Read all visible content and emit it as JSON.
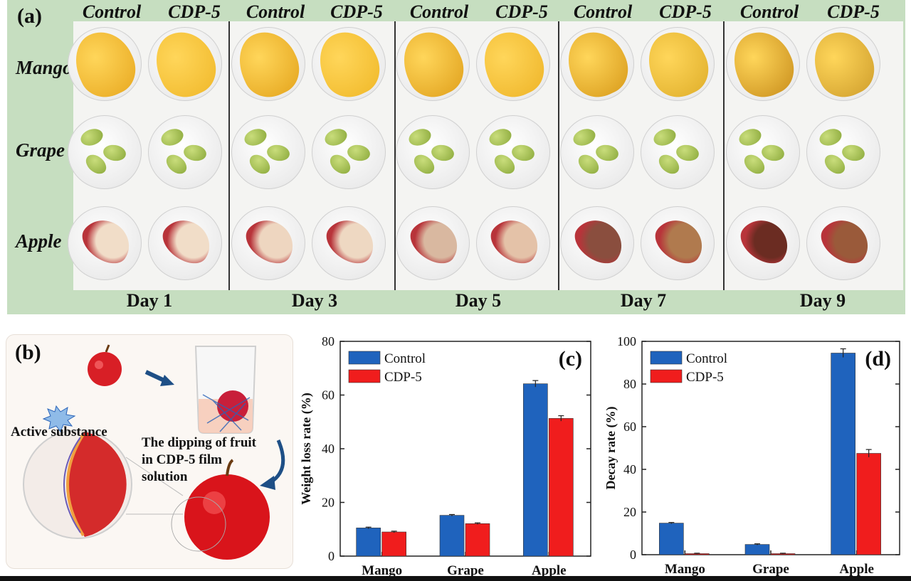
{
  "panel_a": {
    "label": "(a)",
    "column_headers": [
      "Control",
      "CDP-5",
      "Control",
      "CDP-5",
      "Control",
      "CDP-5",
      "Control",
      "CDP-5",
      "Control",
      "CDP-5"
    ],
    "rows": [
      "Mango",
      "Grape",
      "Apple"
    ],
    "days": [
      "Day 1",
      "Day 3",
      "Day 5",
      "Day 7",
      "Day 9"
    ]
  },
  "panel_b": {
    "label": "(b)",
    "active_substance": "Active substance",
    "dipping_text": [
      "The dipping of fruit",
      "in CDP-5 film",
      "solution"
    ]
  },
  "chart_data": [
    {
      "panel": "(c)",
      "type": "bar",
      "categories": [
        "Mango",
        "Grape",
        "Apple"
      ],
      "series": [
        {
          "name": "Control",
          "color": "#1f63bd",
          "values": [
            10.5,
            15.2,
            64.2
          ],
          "errors": [
            0.3,
            0.3,
            1.2
          ]
        },
        {
          "name": "CDP-5",
          "color": "#f01d1d",
          "values": [
            9.0,
            12.1,
            51.3
          ],
          "errors": [
            0.3,
            0.3,
            1.0
          ]
        }
      ],
      "ylabel": "Weight loss rate (%)",
      "ylim": [
        0,
        80
      ],
      "yticks": [
        0,
        20,
        40,
        60,
        80
      ],
      "legend": "top-left"
    },
    {
      "panel": "(d)",
      "type": "bar",
      "categories": [
        "Mango",
        "Grape",
        "Apple"
      ],
      "series": [
        {
          "name": "Control",
          "color": "#1f63bd",
          "values": [
            14.8,
            4.8,
            94.5
          ],
          "errors": [
            0.3,
            0.3,
            2.0
          ]
        },
        {
          "name": "CDP-5",
          "color": "#f01d1d",
          "values": [
            0.5,
            0.5,
            47.5
          ],
          "errors": [
            0.2,
            0.2,
            1.8
          ]
        }
      ],
      "ylabel": "Decay rate (%)",
      "ylim": [
        0,
        100
      ],
      "yticks": [
        0,
        20,
        40,
        60,
        80,
        100
      ],
      "legend": "top-left"
    }
  ]
}
